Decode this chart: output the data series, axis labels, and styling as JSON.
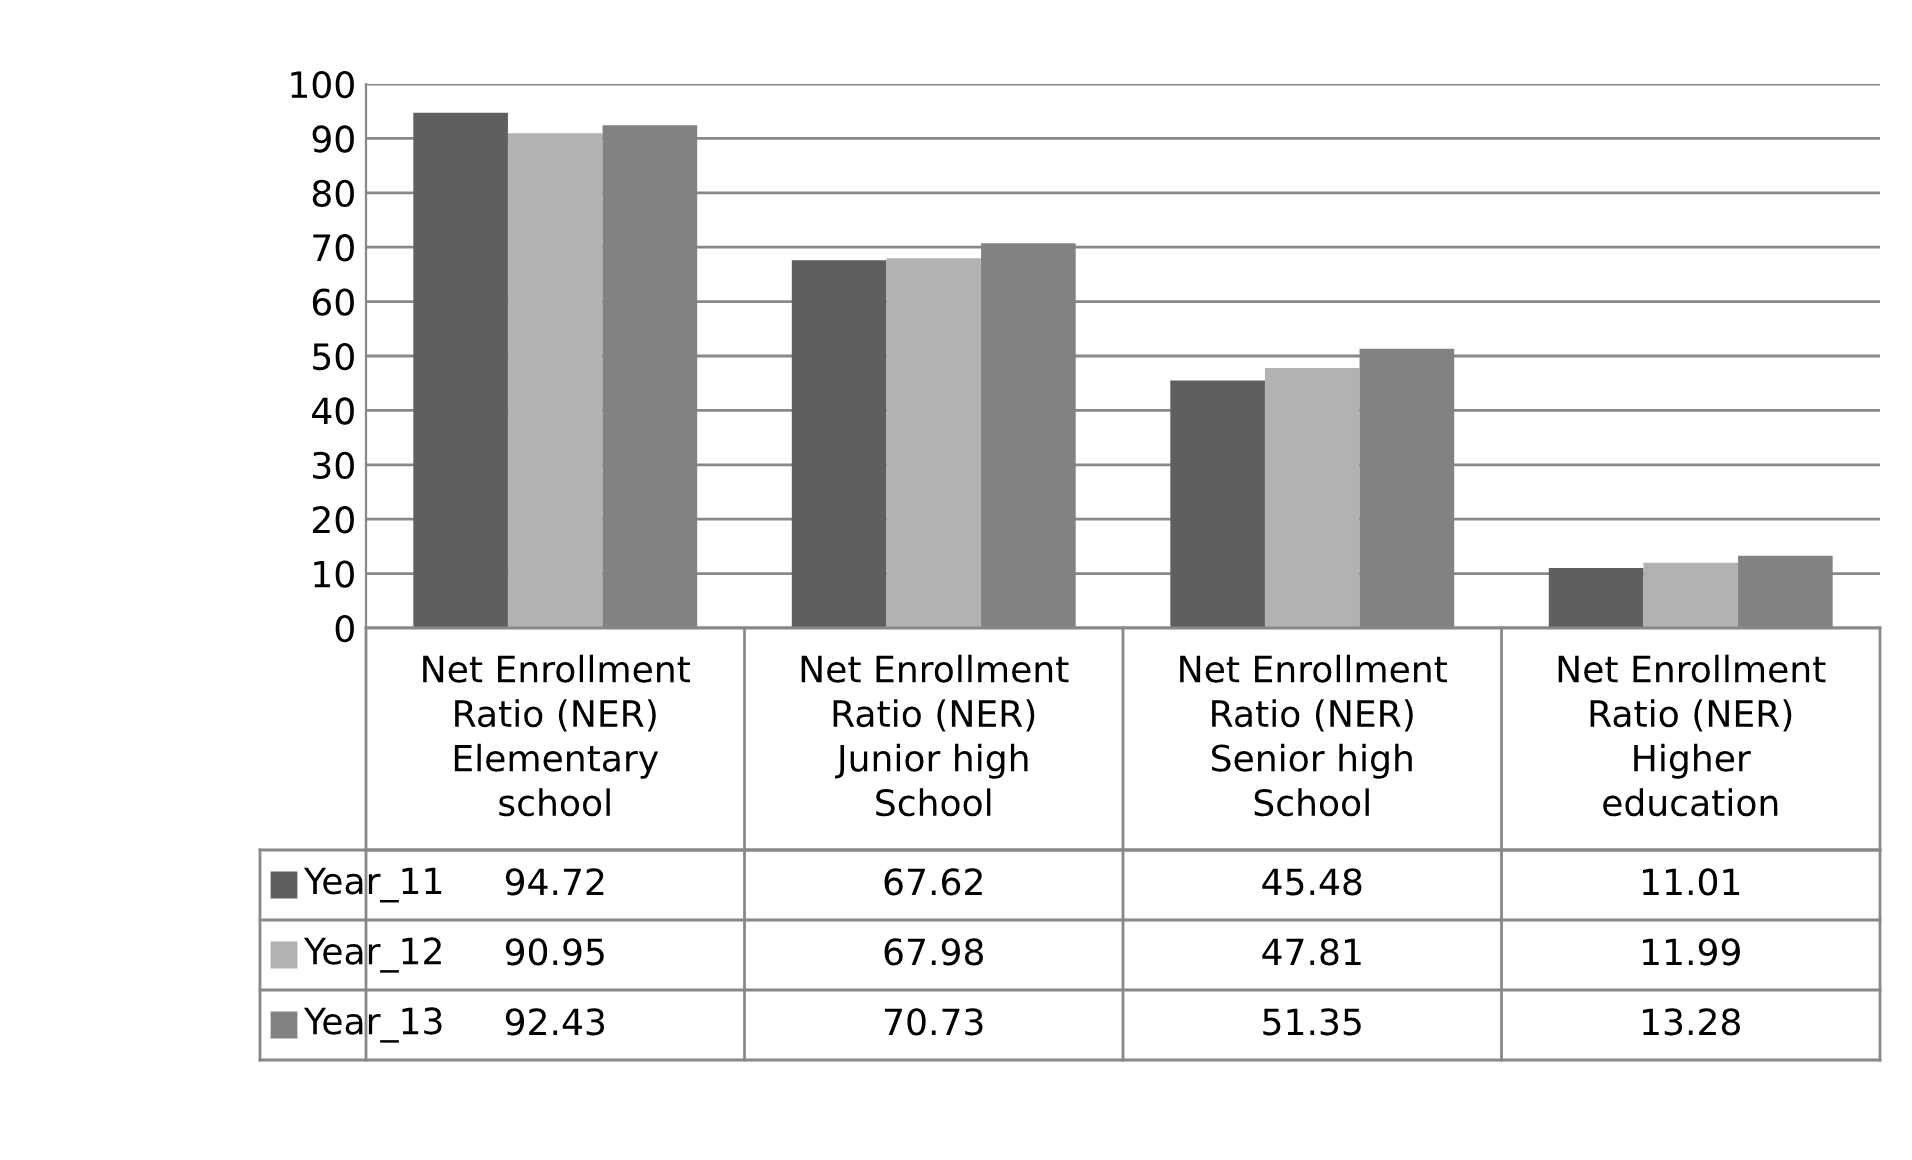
{
  "chart_data": {
    "type": "bar",
    "categories": [
      "Net Enrollment\nRatio (NER)\nElementary\nschool",
      "Net Enrollment\nRatio (NER)\nJunior high\nSchool",
      "Net Enrollment\nRatio (NER)\nSenior high\nSchool",
      "Net Enrollment\nRatio (NER)\nHigher\neducation"
    ],
    "series": [
      {
        "name": "Year_11",
        "color": "#5f5f5f",
        "values": [
          94.72,
          67.62,
          45.48,
          11.01
        ]
      },
      {
        "name": "Year_12",
        "color": "#b2b2b2",
        "values": [
          90.95,
          67.98,
          47.81,
          11.99
        ]
      },
      {
        "name": "Year_13",
        "color": "#828282",
        "values": [
          92.43,
          70.73,
          51.35,
          13.28
        ]
      }
    ],
    "ylim": [
      0,
      100
    ],
    "yticks": [
      0,
      10,
      20,
      30,
      40,
      50,
      60,
      70,
      80,
      90,
      100
    ],
    "grid": "y",
    "legend": "left",
    "data_labels": true
  }
}
